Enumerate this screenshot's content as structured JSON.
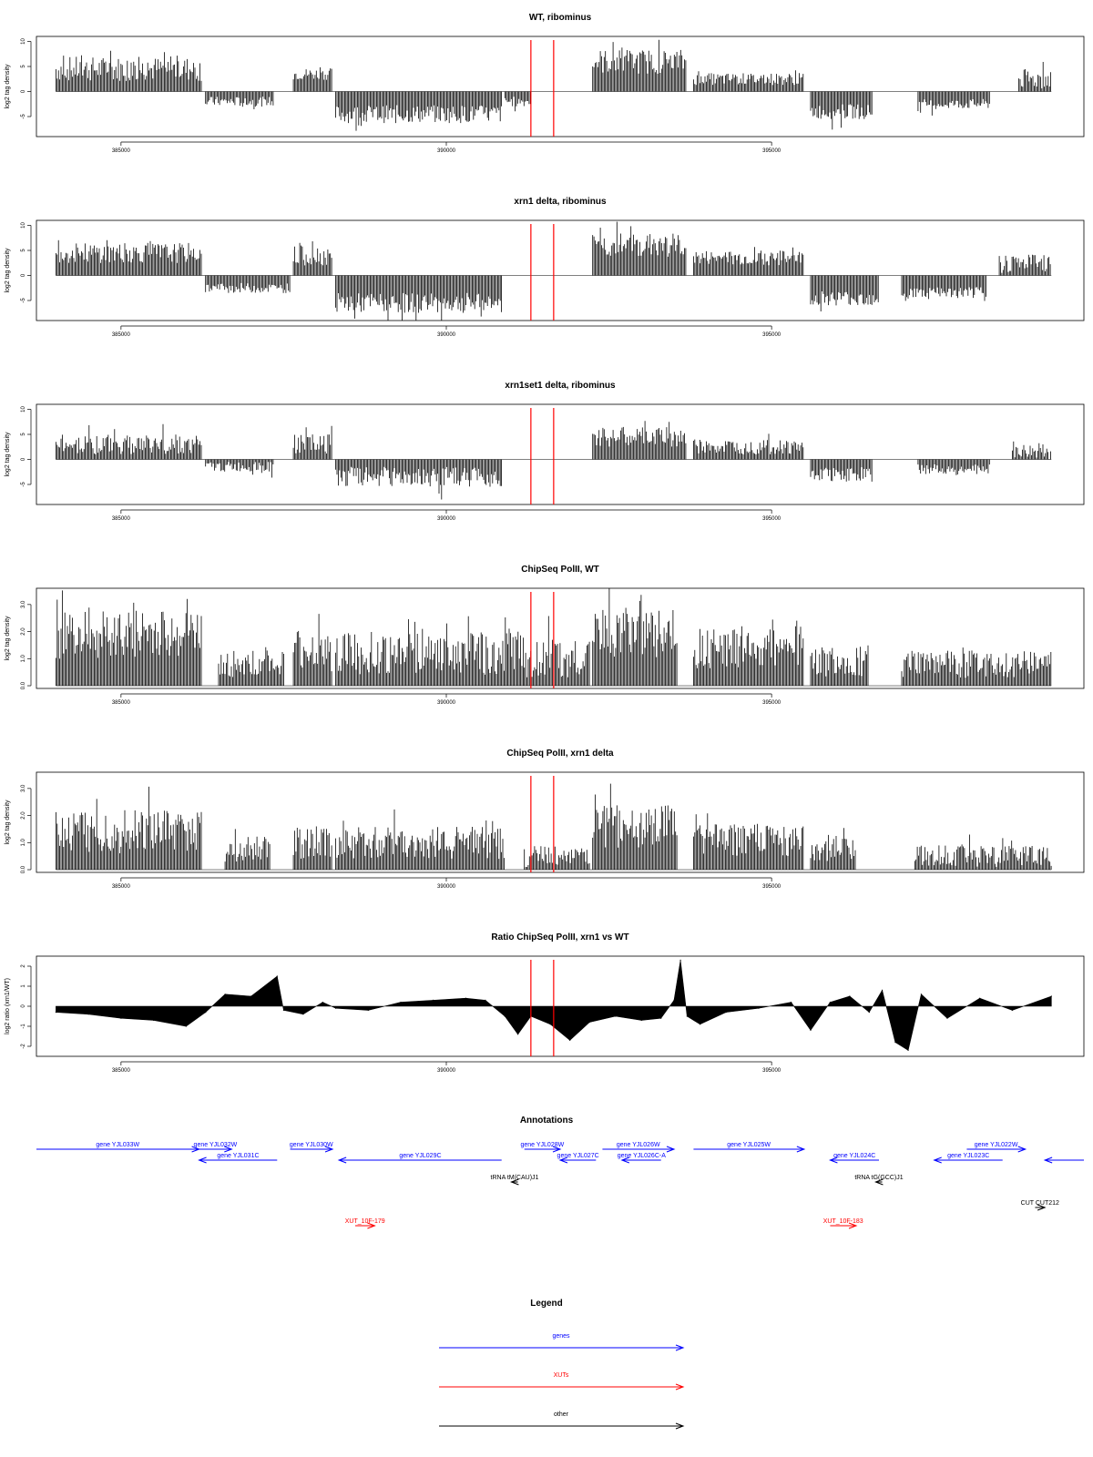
{
  "colors": {
    "genes": "#0000ff",
    "xuts": "#ff0000",
    "other": "#000000",
    "marker": "#ff0000",
    "signal": "#000000"
  },
  "chart_data": [
    {
      "type": "bar",
      "title": "WT, ribominus",
      "ylabel": "log2 tag density",
      "xlim": [
        383700,
        399800
      ],
      "ylim": [
        -9,
        11
      ],
      "xticks": [
        385000,
        390000,
        395000
      ],
      "yticks": [
        -5,
        0,
        5,
        10
      ],
      "ytick_labels": [
        "-5",
        "0",
        "5",
        "10"
      ],
      "markers_x": [
        391300,
        391650
      ],
      "segments": [
        {
          "x0": 384000,
          "x1": 386250,
          "y": 4.5,
          "j": 2.5
        },
        {
          "x0": 386300,
          "x1": 387350,
          "y": -2.0,
          "j": 1.0
        },
        {
          "x0": 387650,
          "x1": 388250,
          "y": 3.5,
          "j": 1.2
        },
        {
          "x0": 388300,
          "x1": 390850,
          "y": -4.5,
          "j": 1.8
        },
        {
          "x0": 390900,
          "x1": 391300,
          "y": -2.0,
          "j": 1.0
        },
        {
          "x0": 392250,
          "x1": 393700,
          "y": 6.0,
          "j": 2.5
        },
        {
          "x0": 393800,
          "x1": 395500,
          "y": 2.5,
          "j": 1.2
        },
        {
          "x0": 395600,
          "x1": 396550,
          "y": -4.0,
          "j": 1.5
        },
        {
          "x0": 397250,
          "x1": 398350,
          "y": -2.5,
          "j": 1.0
        },
        {
          "x0": 398800,
          "x1": 399300,
          "y": 2.5,
          "j": 2.0
        }
      ]
    },
    {
      "type": "bar",
      "title": "xrn1 delta, ribominus",
      "ylabel": "log2 tag density",
      "xlim": [
        383700,
        399800
      ],
      "ylim": [
        -9,
        11
      ],
      "xticks": [
        385000,
        390000,
        395000
      ],
      "yticks": [
        -5,
        0,
        5,
        10
      ],
      "ytick_labels": [
        "-5",
        "0",
        "5",
        "10"
      ],
      "markers_x": [
        391300,
        391650
      ],
      "segments": [
        {
          "x0": 384000,
          "x1": 386250,
          "y": 4.5,
          "j": 2.0
        },
        {
          "x0": 386300,
          "x1": 387600,
          "y": -2.5,
          "j": 1.0
        },
        {
          "x0": 387650,
          "x1": 388250,
          "y": 4.0,
          "j": 2.0
        },
        {
          "x0": 388300,
          "x1": 390850,
          "y": -5.5,
          "j": 2.0
        },
        {
          "x0": 392250,
          "x1": 393700,
          "y": 6.0,
          "j": 2.5
        },
        {
          "x0": 393800,
          "x1": 395500,
          "y": 3.5,
          "j": 1.5
        },
        {
          "x0": 395600,
          "x1": 396650,
          "y": -4.5,
          "j": 1.5
        },
        {
          "x0": 397000,
          "x1": 398300,
          "y": -3.5,
          "j": 1.2
        },
        {
          "x0": 398500,
          "x1": 399300,
          "y": 2.5,
          "j": 2.0
        }
      ]
    },
    {
      "type": "bar",
      "title": "xrn1set1 delta, ribominus",
      "ylabel": "log2 tag density",
      "xlim": [
        383700,
        399800
      ],
      "ylim": [
        -9,
        11
      ],
      "xticks": [
        385000,
        390000,
        395000
      ],
      "yticks": [
        -5,
        0,
        5,
        10
      ],
      "ytick_labels": [
        "-5",
        "0",
        "5",
        "10"
      ],
      "markers_x": [
        391300,
        391650
      ],
      "segments": [
        {
          "x0": 384000,
          "x1": 386250,
          "y": 3.0,
          "j": 2.0
        },
        {
          "x0": 386300,
          "x1": 387350,
          "y": -1.5,
          "j": 1.0
        },
        {
          "x0": 387650,
          "x1": 388250,
          "y": 3.0,
          "j": 2.0
        },
        {
          "x0": 388300,
          "x1": 390850,
          "y": -3.5,
          "j": 2.0
        },
        {
          "x0": 392250,
          "x1": 393700,
          "y": 4.5,
          "j": 2.0
        },
        {
          "x0": 393800,
          "x1": 395500,
          "y": 2.5,
          "j": 1.5
        },
        {
          "x0": 395600,
          "x1": 396550,
          "y": -3.0,
          "j": 1.5
        },
        {
          "x0": 397250,
          "x1": 398350,
          "y": -2.0,
          "j": 1.0
        },
        {
          "x0": 398700,
          "x1": 399300,
          "y": 1.5,
          "j": 1.5
        }
      ]
    },
    {
      "type": "bar",
      "title": "ChipSeq PolII, WT",
      "ylabel": "log2 tag density",
      "xlim": [
        383700,
        399800
      ],
      "ylim": [
        -0.1,
        3.6
      ],
      "xticks": [
        385000,
        390000,
        395000
      ],
      "yticks": [
        0,
        1,
        2,
        3
      ],
      "ytick_labels": [
        "0.0",
        "1.0",
        "2.0",
        "3.0"
      ],
      "markers_x": [
        391300,
        391650
      ],
      "segments": [
        {
          "x0": 384000,
          "x1": 386250,
          "y": 1.9,
          "j": 0.9
        },
        {
          "x0": 386500,
          "x1": 387500,
          "y": 0.8,
          "j": 0.5
        },
        {
          "x0": 387650,
          "x1": 388250,
          "y": 1.3,
          "j": 0.8
        },
        {
          "x0": 388300,
          "x1": 391200,
          "y": 1.2,
          "j": 0.8
        },
        {
          "x0": 391200,
          "x1": 392200,
          "y": 1.0,
          "j": 0.7
        },
        {
          "x0": 392250,
          "x1": 393550,
          "y": 1.9,
          "j": 0.9
        },
        {
          "x0": 393800,
          "x1": 395500,
          "y": 1.4,
          "j": 0.8
        },
        {
          "x0": 395600,
          "x1": 396500,
          "y": 0.9,
          "j": 0.6
        },
        {
          "x0": 397000,
          "x1": 399300,
          "y": 0.8,
          "j": 0.5
        }
      ]
    },
    {
      "type": "bar",
      "title": "ChipSeq PolII, xrn1 delta",
      "ylabel": "log2 tag density",
      "xlim": [
        383700,
        399800
      ],
      "ylim": [
        -0.1,
        3.6
      ],
      "xticks": [
        385000,
        390000,
        395000
      ],
      "yticks": [
        0,
        1,
        2,
        3
      ],
      "ytick_labels": [
        "0.0",
        "1.0",
        "2.0",
        "3.0"
      ],
      "markers_x": [
        391300,
        391650
      ],
      "segments": [
        {
          "x0": 384000,
          "x1": 386250,
          "y": 1.4,
          "j": 0.8
        },
        {
          "x0": 386600,
          "x1": 387300,
          "y": 0.8,
          "j": 0.5
        },
        {
          "x0": 387650,
          "x1": 388250,
          "y": 1.0,
          "j": 0.6
        },
        {
          "x0": 388300,
          "x1": 390900,
          "y": 1.0,
          "j": 0.6
        },
        {
          "x0": 391200,
          "x1": 392200,
          "y": 0.5,
          "j": 0.4
        },
        {
          "x0": 392250,
          "x1": 393550,
          "y": 1.6,
          "j": 0.8
        },
        {
          "x0": 393800,
          "x1": 395500,
          "y": 1.1,
          "j": 0.6
        },
        {
          "x0": 395600,
          "x1": 396300,
          "y": 0.8,
          "j": 0.5
        },
        {
          "x0": 397200,
          "x1": 399300,
          "y": 0.5,
          "j": 0.4
        }
      ]
    },
    {
      "type": "area",
      "title": "Ratio ChipSeq PolII, xrn1 vs WT",
      "ylabel": "log2 ratio (xrn1/WT)",
      "xlim": [
        383700,
        399800
      ],
      "ylim": [
        -2.5,
        2.5
      ],
      "xticks": [
        385000,
        390000,
        395000
      ],
      "yticks": [
        -2,
        -1,
        0,
        1,
        2
      ],
      "ytick_labels": [
        "-2",
        "-1",
        "0",
        "1",
        "2"
      ],
      "markers_x": [
        391300,
        391650
      ],
      "x": [
        384000,
        384500,
        385000,
        385500,
        386000,
        386300,
        386600,
        387000,
        387400,
        387500,
        387800,
        388100,
        388300,
        388800,
        389300,
        389800,
        390300,
        390600,
        390900,
        391100,
        391300,
        391600,
        391900,
        392200,
        392600,
        393000,
        393300,
        393500,
        393600,
        393700,
        393900,
        394300,
        394800,
        395300,
        395600,
        395900,
        396200,
        396500,
        396700,
        396900,
        397100,
        397300,
        397700,
        398200,
        398700,
        399300
      ],
      "y": [
        -0.3,
        -0.4,
        -0.6,
        -0.7,
        -1.0,
        -0.3,
        0.6,
        0.5,
        1.5,
        -0.2,
        -0.4,
        0.2,
        -0.1,
        -0.2,
        0.2,
        0.3,
        0.4,
        0.3,
        -0.5,
        -1.4,
        -0.5,
        -0.9,
        -1.7,
        -0.8,
        -0.5,
        -0.7,
        -0.6,
        0.3,
        2.3,
        -0.5,
        -0.9,
        -0.3,
        -0.1,
        0.2,
        -1.2,
        0.2,
        0.5,
        -0.3,
        0.8,
        -1.8,
        -2.2,
        0.6,
        -0.6,
        0.4,
        -0.2,
        0.5
      ]
    }
  ],
  "annotations": {
    "title": "Annotations",
    "genes": [
      {
        "label": "gene YJL033W",
        "x0": 383700,
        "x1": 386200,
        "dir": "+",
        "row": 0
      },
      {
        "label": "gene YJL032W",
        "x0": 386200,
        "x1": 386700,
        "dir": "+",
        "row": 0
      },
      {
        "label": "gene YJL031C",
        "x0": 386200,
        "x1": 387400,
        "dir": "-",
        "row": 1
      },
      {
        "label": "gene YJL030W",
        "x0": 387600,
        "x1": 388250,
        "dir": "+",
        "row": 0
      },
      {
        "label": "gene YJL029C",
        "x0": 388350,
        "x1": 390850,
        "dir": "-",
        "row": 1
      },
      {
        "label": "gene YJL028W",
        "x0": 391200,
        "x1": 391750,
        "dir": "+",
        "row": 0
      },
      {
        "label": "gene YJL027C",
        "x0": 391750,
        "x1": 392300,
        "dir": "-",
        "row": 1
      },
      {
        "label": "gene YJL026W",
        "x0": 392400,
        "x1": 393500,
        "dir": "+",
        "row": 0
      },
      {
        "label": "gene YJL026C-A",
        "x0": 392700,
        "x1": 393300,
        "dir": "-",
        "row": 1
      },
      {
        "label": "gene YJL025W",
        "x0": 393800,
        "x1": 395500,
        "dir": "+",
        "row": 0
      },
      {
        "label": "gene YJL024C",
        "x0": 395900,
        "x1": 396650,
        "dir": "-",
        "row": 1
      },
      {
        "label": "gene YJL023C",
        "x0": 397500,
        "x1": 398550,
        "dir": "-",
        "row": 1
      },
      {
        "label": "gene YJL022W",
        "x0": 398000,
        "x1": 398900,
        "dir": "+",
        "row": 0
      },
      {
        "label": "",
        "x0": 399200,
        "x1": 399800,
        "dir": "-",
        "row": 1
      }
    ],
    "other": [
      {
        "label": "tRNA tM(CAU)J1",
        "x0": 391000,
        "x1": 391100,
        "dir": "-",
        "row": 2
      },
      {
        "label": "tRNA tG(GCC)J1",
        "x0": 396600,
        "x1": 396700,
        "dir": "-",
        "row": 2
      },
      {
        "label": "CUT CUT212",
        "x0": 399050,
        "x1": 399200,
        "dir": "+",
        "row": 3
      }
    ],
    "xuts": [
      {
        "label": "XUT_10F-179",
        "x0": 388600,
        "x1": 388900,
        "dir": "+",
        "row": 4
      },
      {
        "label": "XUT_10F-183",
        "x0": 395900,
        "x1": 396300,
        "dir": "+",
        "row": 4
      }
    ]
  },
  "legend": {
    "title": "Legend",
    "items": [
      {
        "label": "genes",
        "color": "#0000ff"
      },
      {
        "label": "XUTs",
        "color": "#ff0000"
      },
      {
        "label": "other",
        "color": "#000000"
      }
    ]
  }
}
